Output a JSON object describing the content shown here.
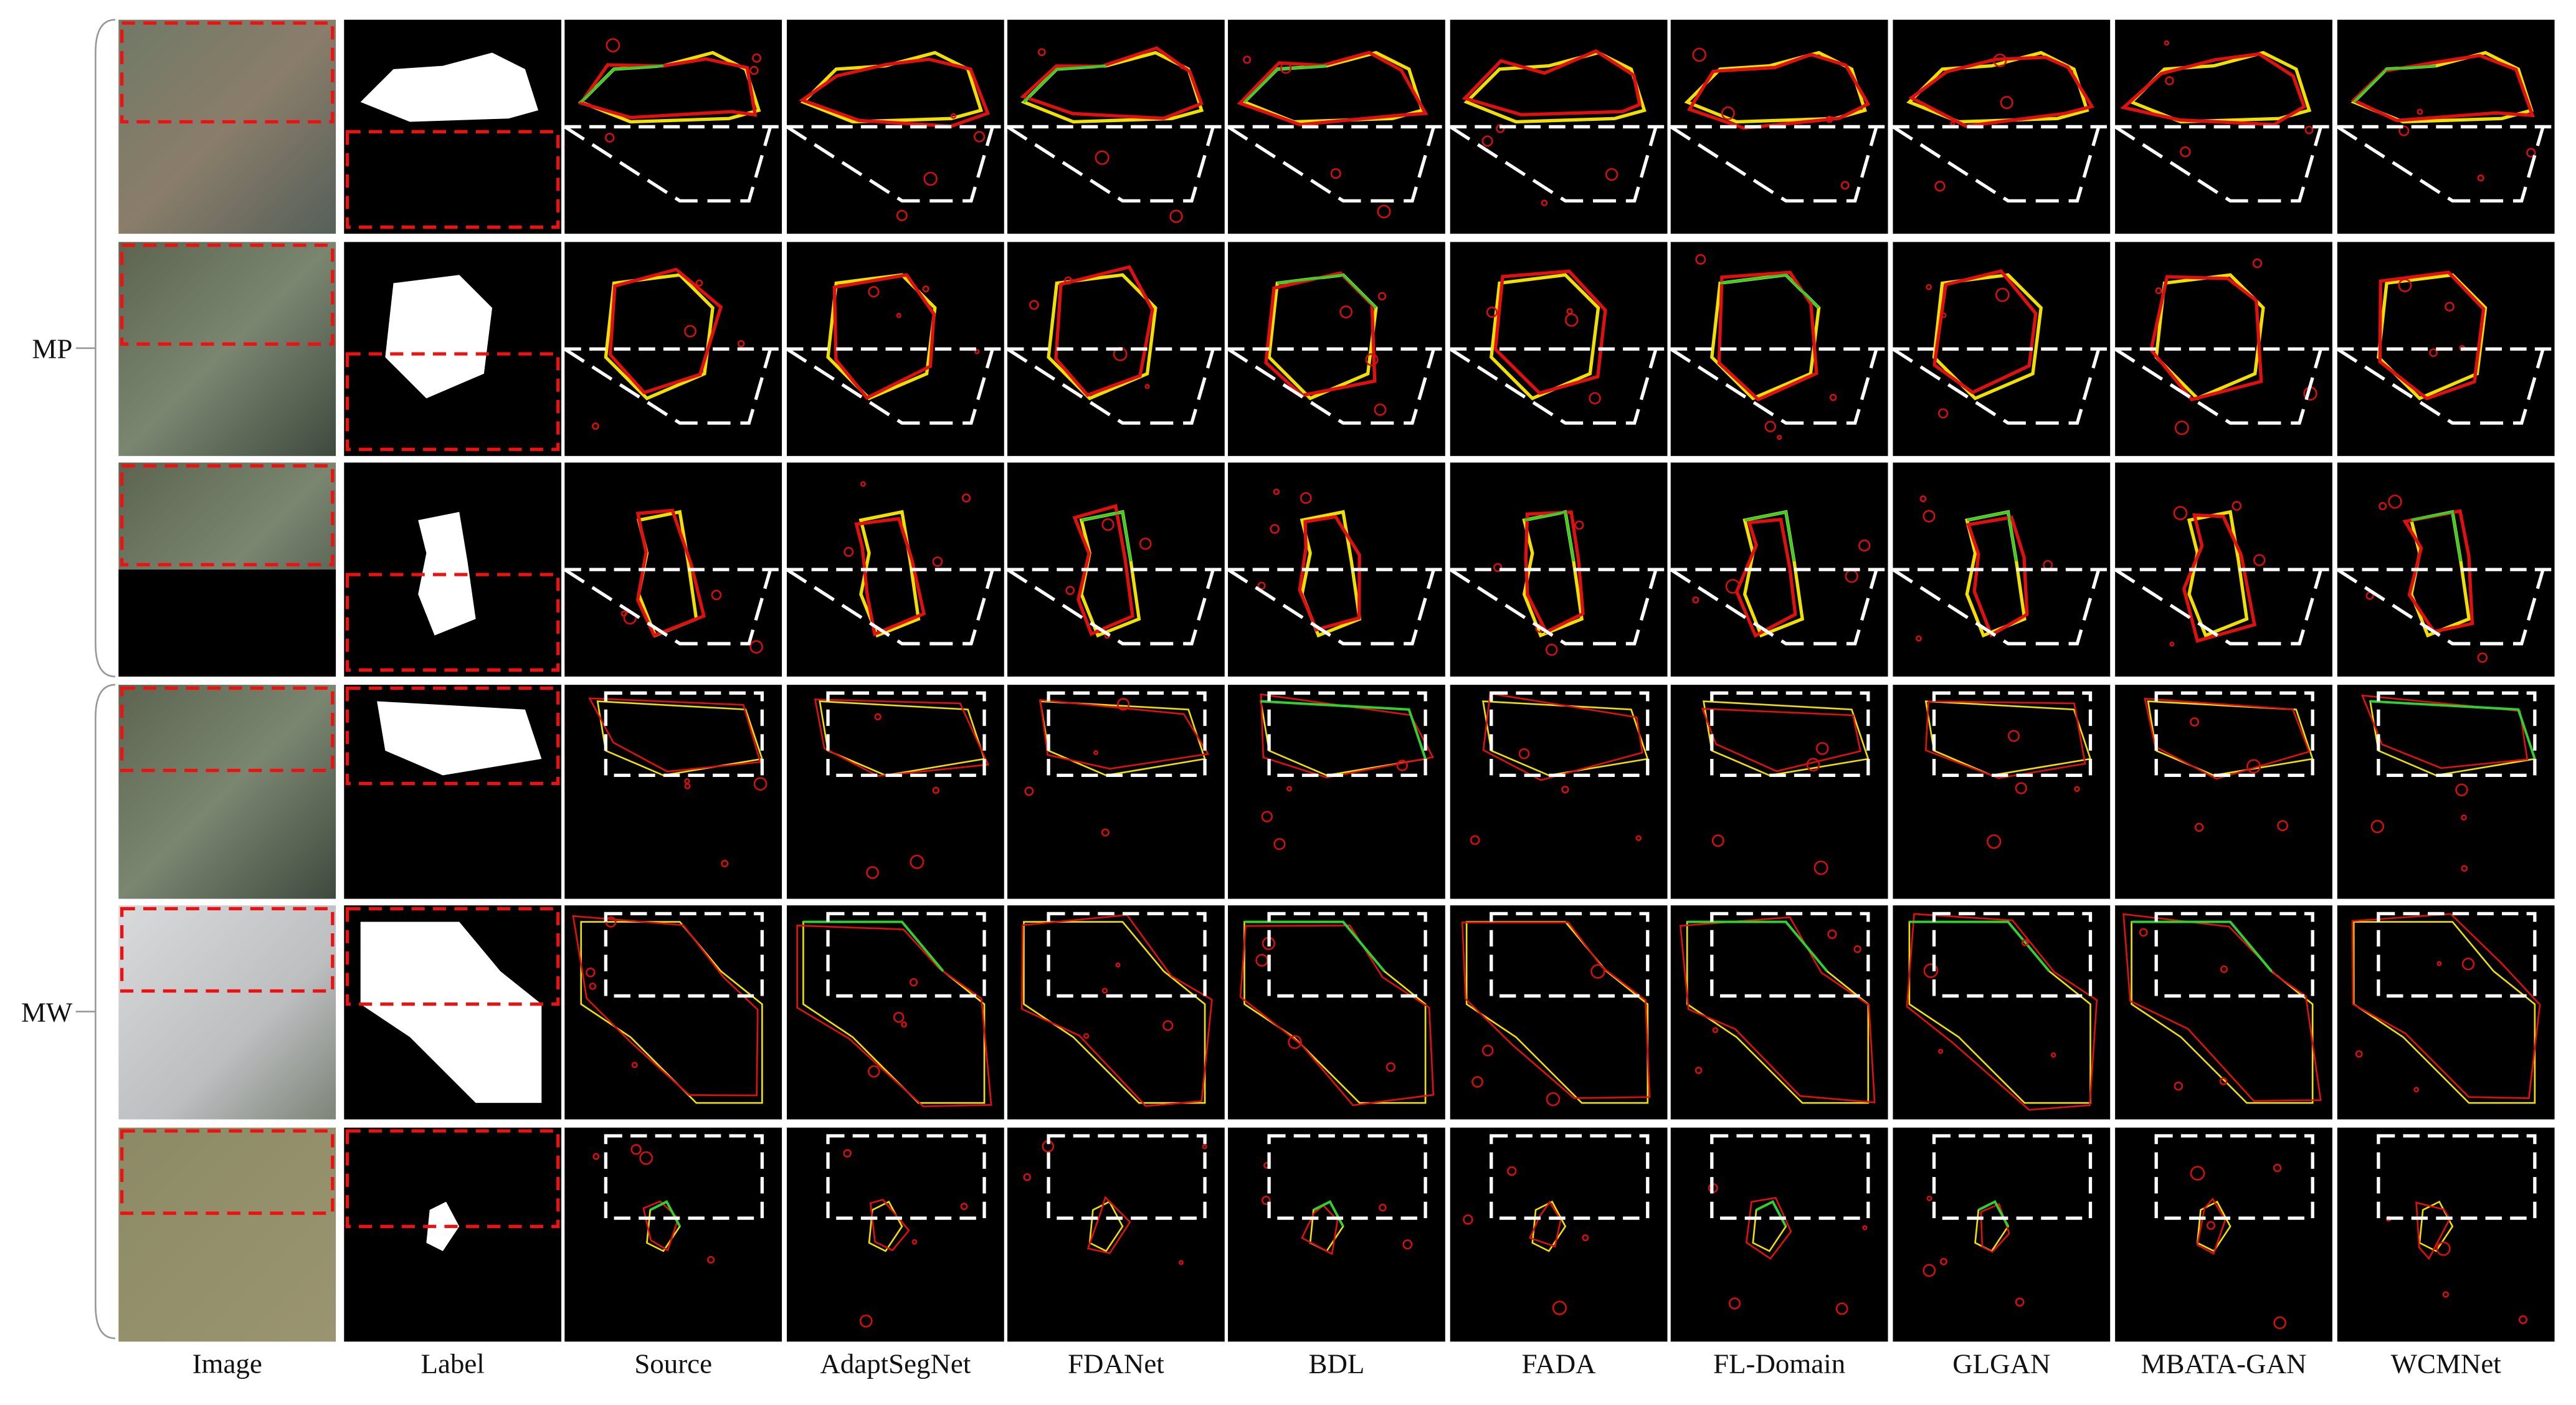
{
  "groups": [
    {
      "label": "MP"
    },
    {
      "label": "MW"
    }
  ],
  "columns": [
    "Image",
    "Label",
    "Source",
    "AdaptSegNet",
    "FDANet",
    "BDL",
    "FADA",
    "FL-Domain",
    "GLGAN",
    "MBATA-GAN",
    "WCMNet"
  ]
}
